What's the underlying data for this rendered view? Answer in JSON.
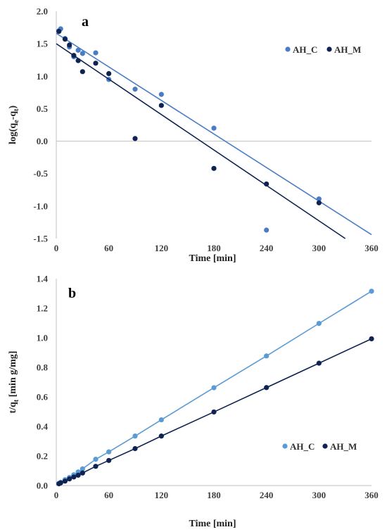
{
  "chart_data": [
    {
      "type": "scatter",
      "panel_label": "a",
      "xlabel": "Time [min]",
      "ylabel": "log(q",
      "ylabel_sub_1": "e",
      "ylabel_mid": "-q",
      "ylabel_sub_2": "t",
      "ylabel_end": ")",
      "xlim": [
        0,
        360
      ],
      "ylim": [
        -1.5,
        2.0
      ],
      "xticks": [
        "0",
        "60",
        "120",
        "180",
        "240",
        "300",
        "360"
      ],
      "yticks": [
        "2.0",
        "1.5",
        "1.0",
        "0.5",
        "0.0",
        "-0.5",
        "-1.0",
        "-1.5"
      ],
      "grid": false,
      "legend_position": "top-right",
      "series": [
        {
          "name": "AH_C",
          "color": "#4a7cc4",
          "x": [
            3,
            5,
            10,
            15,
            20,
            25,
            30,
            45,
            60,
            90,
            120,
            180,
            240,
            300
          ],
          "y": [
            1.7,
            1.73,
            1.58,
            1.45,
            1.3,
            1.4,
            1.35,
            1.36,
            0.95,
            0.8,
            0.72,
            0.2,
            -1.37,
            -0.89
          ],
          "trendline": {
            "slope": -0.00861,
            "intercept": 1.66
          }
        },
        {
          "name": "AH_M",
          "color": "#0f2352",
          "x": [
            3,
            10,
            15,
            20,
            25,
            30,
            45,
            60,
            90,
            120,
            180,
            240,
            300
          ],
          "y": [
            1.69,
            1.57,
            1.48,
            1.32,
            1.24,
            1.07,
            1.2,
            1.04,
            0.04,
            0.55,
            -0.42,
            -0.66,
            -0.95
          ],
          "trendline": {
            "slope": -0.00909,
            "intercept": 1.5
          }
        }
      ]
    },
    {
      "type": "line",
      "panel_label": "b",
      "xlabel": "Time [min]",
      "ylabel": "t/q",
      "ylabel_sub": "t",
      "ylabel_end": " [min g/mg]",
      "xlim": [
        0,
        360
      ],
      "ylim": [
        0,
        1.4
      ],
      "xticks": [
        "0",
        "60",
        "120",
        "180",
        "240",
        "300",
        "360"
      ],
      "yticks": [
        "1.4",
        "1.2",
        "1.0",
        "0.8",
        "0.6",
        "0.4",
        "0.2",
        "0.0"
      ],
      "grid": false,
      "legend_position": "bottom-right",
      "series": [
        {
          "name": "AH_C",
          "color": "#5b9bd5",
          "x": [
            3,
            5,
            10,
            15,
            20,
            25,
            30,
            45,
            60,
            90,
            120,
            180,
            240,
            300,
            360
          ],
          "y": [
            0.015,
            0.022,
            0.04,
            0.055,
            0.073,
            0.092,
            0.113,
            0.178,
            0.228,
            0.335,
            0.445,
            0.662,
            0.877,
            1.097,
            1.315
          ]
        },
        {
          "name": "AH_M",
          "color": "#0f2352",
          "x": [
            3,
            5,
            10,
            15,
            20,
            25,
            30,
            45,
            60,
            90,
            120,
            180,
            240,
            300,
            360
          ],
          "y": [
            0.012,
            0.018,
            0.03,
            0.045,
            0.058,
            0.07,
            0.085,
            0.13,
            0.17,
            0.25,
            0.335,
            0.498,
            0.663,
            0.828,
            0.993
          ]
        }
      ]
    }
  ]
}
